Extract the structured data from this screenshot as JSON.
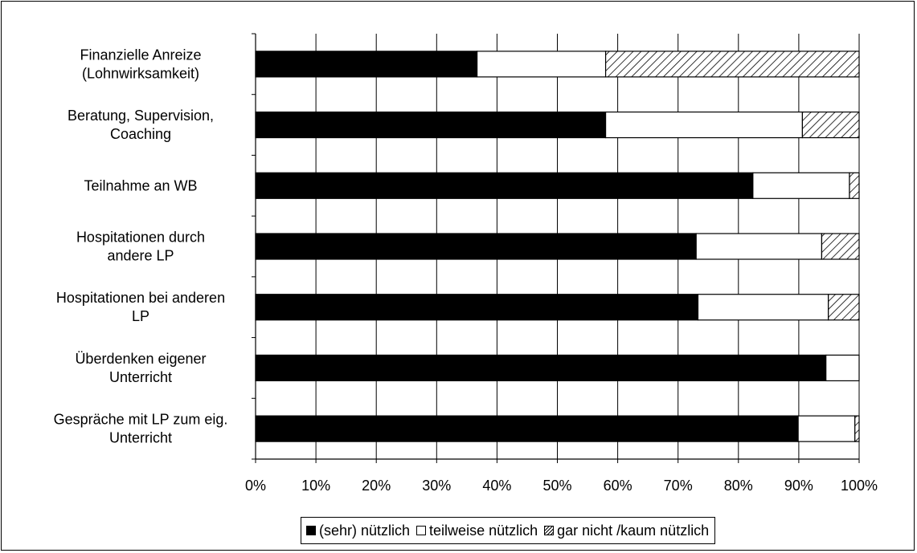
{
  "chart_data": {
    "type": "bar",
    "orientation": "horizontal",
    "stacked": "percent",
    "categories": [
      [
        "Finanzielle Anreize",
        "(Lohnwirksamkeit)"
      ],
      [
        "Beratung, Supervision,",
        "Coaching"
      ],
      [
        "Teilnahme an WB"
      ],
      [
        "Hospitationen durch",
        "andere LP"
      ],
      [
        "Hospitationen bei anderen",
        "LP"
      ],
      [
        "Überdenken eigener",
        "Unterricht"
      ],
      [
        "Gespräche mit LP zum eig.",
        "Unterricht"
      ]
    ],
    "series": [
      {
        "name": "(sehr) nützlich",
        "values": [
          36.7,
          58.0,
          82.4,
          73.0,
          73.3,
          94.5,
          89.9
        ],
        "color": "#000000"
      },
      {
        "name": "teilweise nützlich",
        "values": [
          21.3,
          32.6,
          16.0,
          20.8,
          21.6,
          5.5,
          9.4
        ],
        "color": "#ffffff"
      },
      {
        "name": "gar nicht /kaum nützlich",
        "values": [
          42.0,
          9.4,
          1.6,
          6.2,
          5.1,
          0.0,
          0.7
        ],
        "color": "hatch"
      }
    ],
    "x_ticks": [
      "0%",
      "10%",
      "20%",
      "30%",
      "40%",
      "50%",
      "60%",
      "70%",
      "80%",
      "90%",
      "100%"
    ],
    "xlim": [
      0,
      100
    ],
    "grid": true,
    "legend_position": "bottom"
  }
}
